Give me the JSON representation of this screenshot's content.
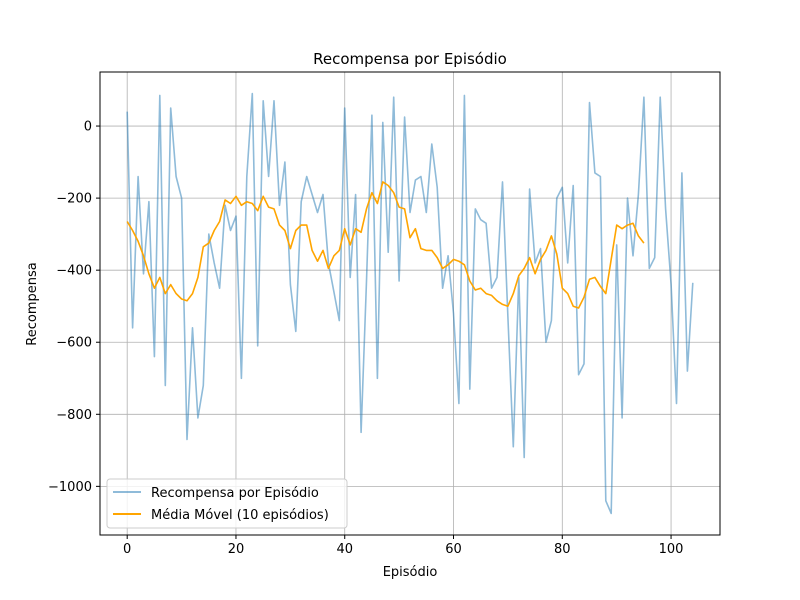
{
  "chart_data": {
    "type": "line",
    "title": "Recompensa por Episódio",
    "xlabel": "Episódio",
    "ylabel": "Recompensa",
    "xlim": [
      -5,
      109
    ],
    "ylim": [
      -1135,
      150
    ],
    "xticks": [
      0,
      20,
      40,
      60,
      80,
      100
    ],
    "yticks": [
      -1000,
      -800,
      -600,
      -400,
      -200,
      0
    ],
    "grid": true,
    "legend": "lower-left",
    "series": [
      {
        "name": "Recompensa por Episódio",
        "color": "#1f77b4",
        "alpha": 0.5,
        "x_start": 0,
        "values": [
          40,
          -560,
          -140,
          -410,
          -210,
          -640,
          85,
          -720,
          50,
          -140,
          -200,
          -870,
          -560,
          -810,
          -720,
          -300,
          -380,
          -450,
          -220,
          -290,
          -250,
          -700,
          -140,
          90,
          -610,
          70,
          -140,
          70,
          -220,
          -100,
          -440,
          -570,
          -210,
          -140,
          -190,
          -240,
          -190,
          -380,
          -460,
          -540,
          50,
          -420,
          -190,
          -850,
          -430,
          30,
          -700,
          10,
          -350,
          80,
          -430,
          25,
          -240,
          -150,
          -140,
          -240,
          -50,
          -170,
          -450,
          -360,
          -520,
          -770,
          85,
          -730,
          -230,
          -260,
          -270,
          -450,
          -420,
          -155,
          -530,
          -890,
          -420,
          -920,
          -175,
          -380,
          -340,
          -600,
          -540,
          -200,
          -170,
          -380,
          -165,
          -690,
          -660,
          65,
          -130,
          -140,
          -1040,
          -1075,
          -330,
          -810,
          -200,
          -360,
          -190,
          80,
          -395,
          -365,
          80,
          -230,
          -440,
          -770,
          -130,
          -680,
          -435
        ]
      },
      {
        "name": "Média Móvel (10 episódios)",
        "color": "#ffa500",
        "alpha": 1,
        "x_start": 0,
        "values": [
          -265,
          -290,
          -320,
          -360,
          -410,
          -450,
          -420,
          -465,
          -440,
          -465,
          -480,
          -485,
          -465,
          -420,
          -335,
          -325,
          -290,
          -265,
          -205,
          -215,
          -195,
          -220,
          -210,
          -215,
          -235,
          -195,
          -225,
          -230,
          -275,
          -290,
          -340,
          -290,
          -275,
          -275,
          -345,
          -375,
          -345,
          -395,
          -360,
          -345,
          -285,
          -330,
          -285,
          -295,
          -230,
          -185,
          -215,
          -155,
          -165,
          -185,
          -225,
          -230,
          -310,
          -285,
          -340,
          -345,
          -345,
          -365,
          -395,
          -385,
          -370,
          -375,
          -385,
          -430,
          -455,
          -450,
          -465,
          -470,
          -485,
          -495,
          -500,
          -465,
          -415,
          -395,
          -365,
          -410,
          -370,
          -345,
          -305,
          -355,
          -450,
          -465,
          -500,
          -505,
          -475,
          -425,
          -420,
          -445,
          -465,
          -370,
          -275,
          -285,
          -275,
          -270,
          -305,
          -325
        ]
      }
    ]
  }
}
